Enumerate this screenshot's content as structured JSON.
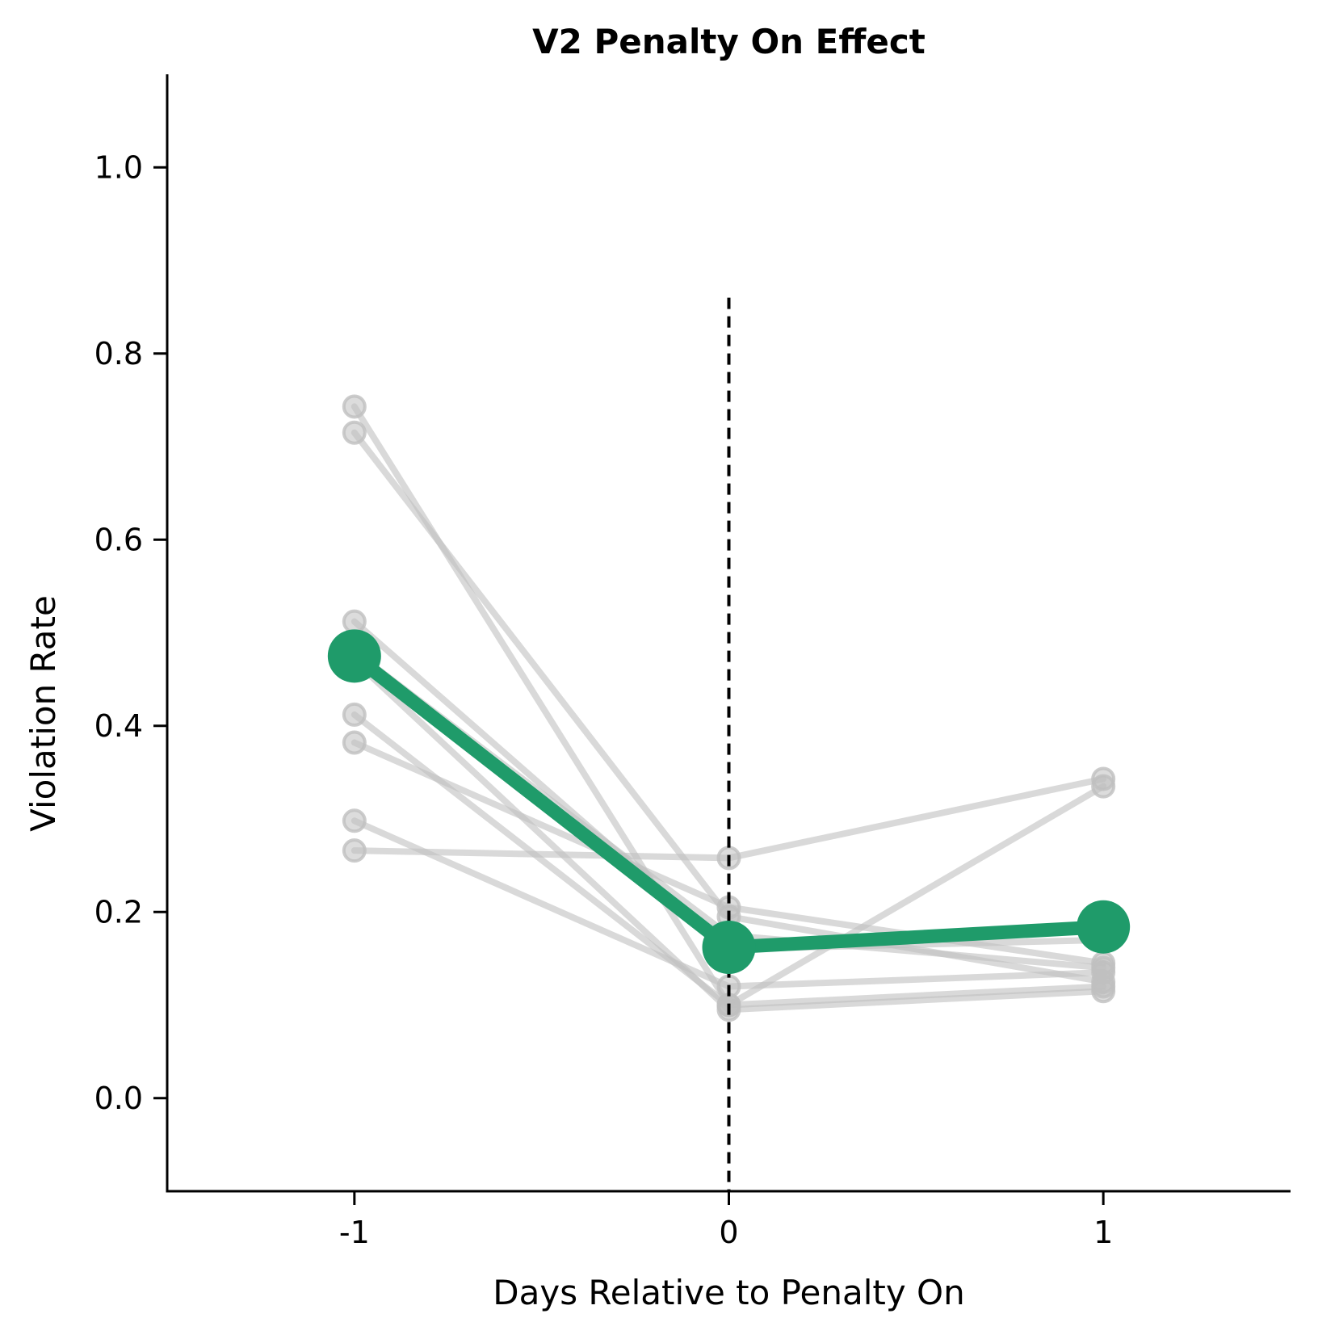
{
  "chart_data": {
    "type": "line",
    "title": "V2 Penalty On Effect",
    "xlabel": "Days Relative to Penalty On",
    "ylabel": "Violation Rate",
    "x": [
      -1,
      0,
      1
    ],
    "x_tick_labels": [
      "-1",
      "0",
      "1"
    ],
    "xlim": [
      -1.5,
      1.5
    ],
    "ylim": [
      -0.1,
      1.1
    ],
    "y_ticks": [
      0.0,
      0.2,
      0.4,
      0.6,
      0.8,
      1.0
    ],
    "y_tick_labels": [
      "0.0",
      "0.2",
      "0.4",
      "0.6",
      "0.8",
      "1.0"
    ],
    "reference_line": {
      "x": 0,
      "y_range": [
        -0.1,
        0.86
      ],
      "style": "dashed",
      "color": "#000000"
    },
    "grid": false,
    "legend": "none",
    "individual_color": "#bfbfbf",
    "mean_color": "#1f9b6a",
    "individual_series": [
      {
        "values": [
          0.743,
          0.1,
          0.335
        ]
      },
      {
        "values": [
          0.715,
          0.195,
          0.125
        ]
      },
      {
        "values": [
          0.512,
          0.16,
          0.17
        ]
      },
      {
        "values": [
          0.412,
          0.1,
          0.12
        ]
      },
      {
        "values": [
          0.382,
          0.205,
          0.145
        ]
      },
      {
        "values": [
          0.298,
          0.12,
          0.135
        ]
      },
      {
        "values": [
          0.266,
          0.258,
          0.343
        ]
      },
      {
        "values": [
          0.47,
          0.095,
          0.115
        ]
      },
      {
        "values": [
          0.48,
          0.175,
          0.14
        ]
      }
    ],
    "mean_series": {
      "values": [
        0.475,
        0.162,
        0.184
      ]
    }
  }
}
